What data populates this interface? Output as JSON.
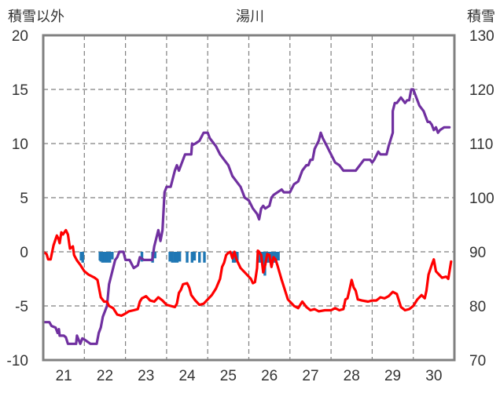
{
  "chart_data": {
    "type": "line",
    "title": "湯川",
    "left_axis": {
      "label": "積雪以外",
      "ticks": [
        "20",
        "15",
        "10",
        "5",
        "0",
        "-5",
        "-10"
      ],
      "range": [
        -10,
        20
      ]
    },
    "right_axis": {
      "label": "積雪",
      "ticks": [
        "130",
        "120",
        "110",
        "100",
        "90",
        "80",
        "70"
      ],
      "range": [
        70,
        130
      ]
    },
    "x_axis": {
      "range": [
        20.5,
        30.5
      ],
      "tick_labels": [
        "21",
        "22",
        "23",
        "24",
        "25",
        "26",
        "27",
        "28",
        "29",
        "30"
      ],
      "tick_values": [
        21,
        22,
        23,
        24,
        25,
        26,
        27,
        28,
        29,
        30
      ]
    },
    "grid": true,
    "colors": {
      "temperature": "#ff0000",
      "snow_depth": "#7030a0",
      "precipitation": "#1f77b4",
      "frame": "#808080",
      "grid": "#808080"
    },
    "series": [
      {
        "key": "temperature",
        "axis": "left",
        "points": [
          [
            20.5,
            0
          ],
          [
            20.58,
            -0.2
          ],
          [
            20.62,
            -0.7
          ],
          [
            20.68,
            -0.7
          ],
          [
            20.75,
            0.6
          ],
          [
            20.83,
            1.5
          ],
          [
            20.87,
            1.2
          ],
          [
            20.9,
            0.8
          ],
          [
            20.94,
            1.8
          ],
          [
            20.98,
            1.6
          ],
          [
            21.05,
            2
          ],
          [
            21.1,
            1.6
          ],
          [
            21.15,
            0.3
          ],
          [
            21.22,
            0.5
          ],
          [
            21.25,
            -0.3
          ],
          [
            21.32,
            -0.8
          ],
          [
            21.4,
            -1.2
          ],
          [
            21.5,
            -1.8
          ],
          [
            21.6,
            -2.1
          ],
          [
            21.75,
            -2.4
          ],
          [
            21.82,
            -2.6
          ],
          [
            21.9,
            -4.2
          ],
          [
            21.98,
            -4.6
          ],
          [
            22.05,
            -4.6
          ],
          [
            22.1,
            -5
          ],
          [
            22.2,
            -5.2
          ],
          [
            22.3,
            -5.8
          ],
          [
            22.4,
            -5.9
          ],
          [
            22.5,
            -5.7
          ],
          [
            22.58,
            -5.5
          ],
          [
            22.7,
            -5.4
          ],
          [
            22.8,
            -5.3
          ],
          [
            22.85,
            -4.6
          ],
          [
            22.9,
            -4.3
          ],
          [
            23,
            -4.1
          ],
          [
            23.1,
            -4.5
          ],
          [
            23.2,
            -4.6
          ],
          [
            23.3,
            -4.2
          ],
          [
            23.4,
            -4.5
          ],
          [
            23.5,
            -4.9
          ],
          [
            23.6,
            -5
          ],
          [
            23.7,
            -5.1
          ],
          [
            23.75,
            -4.8
          ],
          [
            23.8,
            -3.8
          ],
          [
            23.85,
            -3.5
          ],
          [
            23.9,
            -3
          ],
          [
            24,
            -2.9
          ],
          [
            24.05,
            -3.3
          ],
          [
            24.1,
            -4
          ],
          [
            24.2,
            -4.5
          ],
          [
            24.3,
            -4.9
          ],
          [
            24.4,
            -4.8
          ],
          [
            24.5,
            -4.4
          ],
          [
            24.6,
            -4
          ],
          [
            24.7,
            -3.4
          ],
          [
            24.8,
            -2.5
          ],
          [
            24.85,
            -1.4
          ],
          [
            24.9,
            -1
          ],
          [
            24.95,
            -0.3
          ],
          [
            25,
            -0.1
          ],
          [
            25.05,
            0
          ],
          [
            25.1,
            -0.6
          ],
          [
            25.15,
            0
          ],
          [
            25.2,
            -0.7
          ],
          [
            25.3,
            -1.5
          ],
          [
            25.4,
            -1.9
          ],
          [
            25.5,
            -2.3
          ],
          [
            25.55,
            -2.5
          ],
          [
            25.6,
            -2.9
          ],
          [
            25.65,
            -2.8
          ],
          [
            25.7,
            -1.5
          ],
          [
            25.72,
            0.1
          ],
          [
            25.75,
            0
          ],
          [
            25.8,
            -0.3
          ],
          [
            25.85,
            -1.9
          ],
          [
            25.9,
            -1.2
          ],
          [
            25.95,
            -0.2
          ],
          [
            26,
            -0.3
          ],
          [
            26.05,
            -1.4
          ],
          [
            26.1,
            -0.5
          ],
          [
            26.15,
            -0.7
          ],
          [
            26.2,
            -1.3
          ],
          [
            26.3,
            -2.6
          ],
          [
            26.45,
            -4.4
          ],
          [
            26.6,
            -5
          ],
          [
            26.7,
            -5.2
          ],
          [
            26.8,
            -4.6
          ],
          [
            26.9,
            -5.1
          ],
          [
            27,
            -5.4
          ],
          [
            27.1,
            -5.3
          ],
          [
            27.2,
            -5.5
          ],
          [
            27.35,
            -5.4
          ],
          [
            27.5,
            -5.4
          ],
          [
            27.6,
            -5.2
          ],
          [
            27.7,
            -5.4
          ],
          [
            27.8,
            -5.3
          ],
          [
            27.85,
            -4.4
          ],
          [
            27.9,
            -4.3
          ],
          [
            27.95,
            -3.5
          ],
          [
            28,
            -2.6
          ],
          [
            28.05,
            -3.3
          ],
          [
            28.1,
            -3.6
          ],
          [
            28.15,
            -4.4
          ],
          [
            28.25,
            -4.5
          ],
          [
            28.4,
            -4.6
          ],
          [
            28.5,
            -4.5
          ],
          [
            28.6,
            -4.5
          ],
          [
            28.7,
            -4.2
          ],
          [
            28.8,
            -4.3
          ],
          [
            28.9,
            -4.1
          ],
          [
            29,
            -3.7
          ],
          [
            29.1,
            -3.9
          ],
          [
            29.2,
            -5.1
          ],
          [
            29.3,
            -5.4
          ],
          [
            29.4,
            -5.3
          ],
          [
            29.5,
            -5
          ],
          [
            29.6,
            -4.4
          ],
          [
            29.7,
            -4
          ],
          [
            29.78,
            -4.3
          ],
          [
            29.82,
            -3.6
          ],
          [
            29.87,
            -2.1
          ],
          [
            29.95,
            -1.2
          ],
          [
            30,
            -0.7
          ],
          [
            30.05,
            -1.8
          ],
          [
            30.1,
            -2
          ],
          [
            30.2,
            -2.4
          ],
          [
            30.3,
            -2.3
          ],
          [
            30.35,
            -2.5
          ],
          [
            30.42,
            -0.9
          ]
        ]
      },
      {
        "key": "snow_depth",
        "axis": "right",
        "points": [
          [
            20.5,
            77
          ],
          [
            20.65,
            77
          ],
          [
            20.7,
            76.3
          ],
          [
            20.8,
            76
          ],
          [
            20.85,
            75
          ],
          [
            20.88,
            75.7
          ],
          [
            20.9,
            74.5
          ],
          [
            21,
            74.5
          ],
          [
            21.05,
            74.2
          ],
          [
            21.1,
            73
          ],
          [
            21.3,
            73
          ],
          [
            21.32,
            74.5
          ],
          [
            21.4,
            73
          ],
          [
            21.45,
            74
          ],
          [
            21.5,
            73.8
          ],
          [
            21.65,
            73
          ],
          [
            21.8,
            73
          ],
          [
            21.85,
            75
          ],
          [
            21.9,
            76
          ],
          [
            21.95,
            78
          ],
          [
            22.05,
            80
          ],
          [
            22.1,
            84
          ],
          [
            22.2,
            87
          ],
          [
            22.25,
            88.5
          ],
          [
            22.3,
            89
          ],
          [
            22.35,
            90
          ],
          [
            22.45,
            90
          ],
          [
            22.5,
            88.5
          ],
          [
            22.6,
            88.5
          ],
          [
            22.7,
            87
          ],
          [
            22.8,
            87.5
          ],
          [
            22.85,
            89
          ],
          [
            22.95,
            88.5
          ],
          [
            23.15,
            88.5
          ],
          [
            23.2,
            91
          ],
          [
            23.3,
            94
          ],
          [
            23.35,
            92
          ],
          [
            23.4,
            94
          ],
          [
            23.45,
            101
          ],
          [
            23.5,
            102
          ],
          [
            23.6,
            102
          ],
          [
            23.7,
            105
          ],
          [
            23.75,
            106
          ],
          [
            23.8,
            105
          ],
          [
            23.85,
            106
          ],
          [
            23.95,
            108
          ],
          [
            24.1,
            108
          ],
          [
            24.12,
            110
          ],
          [
            24.15,
            109.8
          ],
          [
            24.2,
            110
          ],
          [
            24.3,
            110.5
          ],
          [
            24.4,
            112
          ],
          [
            24.5,
            112
          ],
          [
            24.55,
            111
          ],
          [
            24.6,
            110.5
          ],
          [
            24.7,
            109.5
          ],
          [
            24.8,
            108
          ],
          [
            24.9,
            107
          ],
          [
            25,
            106
          ],
          [
            25.1,
            104
          ],
          [
            25.2,
            103
          ],
          [
            25.3,
            102
          ],
          [
            25.4,
            100
          ],
          [
            25.5,
            99.5
          ],
          [
            25.6,
            98
          ],
          [
            25.7,
            97
          ],
          [
            25.75,
            96
          ],
          [
            25.8,
            98
          ],
          [
            25.85,
            98.5
          ],
          [
            25.9,
            98
          ],
          [
            26,
            98.5
          ],
          [
            26.05,
            100
          ],
          [
            26.1,
            100.5
          ],
          [
            26.2,
            101
          ],
          [
            26.3,
            101.5
          ],
          [
            26.35,
            101
          ],
          [
            26.5,
            101
          ],
          [
            26.6,
            102.5
          ],
          [
            26.7,
            103
          ],
          [
            26.8,
            105
          ],
          [
            26.9,
            106
          ],
          [
            26.95,
            106
          ],
          [
            27,
            107
          ],
          [
            27.05,
            107
          ],
          [
            27.1,
            109
          ],
          [
            27.2,
            110.5
          ],
          [
            27.25,
            112
          ],
          [
            27.3,
            111
          ],
          [
            27.4,
            109.5
          ],
          [
            27.5,
            108
          ],
          [
            27.6,
            106.5
          ],
          [
            27.7,
            106
          ],
          [
            27.8,
            105
          ],
          [
            27.9,
            105
          ],
          [
            28,
            105
          ],
          [
            28.1,
            105
          ],
          [
            28.2,
            106
          ],
          [
            28.3,
            107
          ],
          [
            28.45,
            107
          ],
          [
            28.5,
            106.5
          ],
          [
            28.55,
            107
          ],
          [
            28.65,
            108.5
          ],
          [
            28.7,
            108
          ],
          [
            28.85,
            108
          ],
          [
            28.9,
            109.5
          ],
          [
            29,
            112
          ],
          [
            29,
            116
          ],
          [
            29.05,
            117.5
          ],
          [
            29.1,
            117.5
          ],
          [
            29.15,
            118
          ],
          [
            29.2,
            118.5
          ],
          [
            29.3,
            117.5
          ],
          [
            29.35,
            118
          ],
          [
            29.4,
            118
          ],
          [
            29.45,
            120
          ],
          [
            29.5,
            120
          ],
          [
            29.55,
            119
          ],
          [
            29.6,
            118
          ],
          [
            29.65,
            117
          ],
          [
            29.75,
            116
          ],
          [
            29.8,
            115
          ],
          [
            29.85,
            114
          ],
          [
            29.9,
            114
          ],
          [
            29.95,
            113.5
          ],
          [
            30,
            112.5
          ],
          [
            30.05,
            113
          ],
          [
            30.1,
            112
          ],
          [
            30.15,
            112.5
          ],
          [
            30.25,
            113
          ],
          [
            30.38,
            113
          ]
        ]
      },
      {
        "key": "precipitation",
        "axis": "left",
        "type": "bar",
        "points": [
          [
            21.42,
            -0.8
          ],
          [
            21.46,
            -1
          ],
          [
            21.88,
            -0.8
          ],
          [
            21.9,
            -0.9
          ],
          [
            21.94,
            -1
          ],
          [
            22,
            -1
          ],
          [
            22.06,
            -1
          ],
          [
            22.12,
            -1
          ],
          [
            22.18,
            -0.7
          ],
          [
            22.9,
            -0.9
          ],
          [
            23.16,
            -1
          ],
          [
            23.22,
            -0.6
          ],
          [
            23.58,
            -0.9
          ],
          [
            23.64,
            -1
          ],
          [
            23.7,
            -1
          ],
          [
            23.76,
            -1
          ],
          [
            23.82,
            -0.9
          ],
          [
            24,
            -1
          ],
          [
            24.12,
            -1
          ],
          [
            24.18,
            -0.8
          ],
          [
            24.3,
            -1
          ],
          [
            24.42,
            -1
          ],
          [
            25.12,
            -1
          ],
          [
            25.16,
            -1
          ],
          [
            25.22,
            -0.8
          ],
          [
            25.76,
            -1
          ],
          [
            25.8,
            -1
          ],
          [
            25.84,
            -1
          ],
          [
            25.87,
            -1.2
          ],
          [
            25.9,
            -1
          ],
          [
            25.94,
            -1
          ],
          [
            25.98,
            -1
          ],
          [
            26.02,
            -1
          ],
          [
            26.06,
            -1
          ],
          [
            26.1,
            -1
          ],
          [
            26.14,
            -1
          ],
          [
            26.18,
            -0.8
          ],
          [
            26.22,
            -0.8
          ],
          [
            25.89,
            -2.2
          ]
        ]
      }
    ]
  }
}
